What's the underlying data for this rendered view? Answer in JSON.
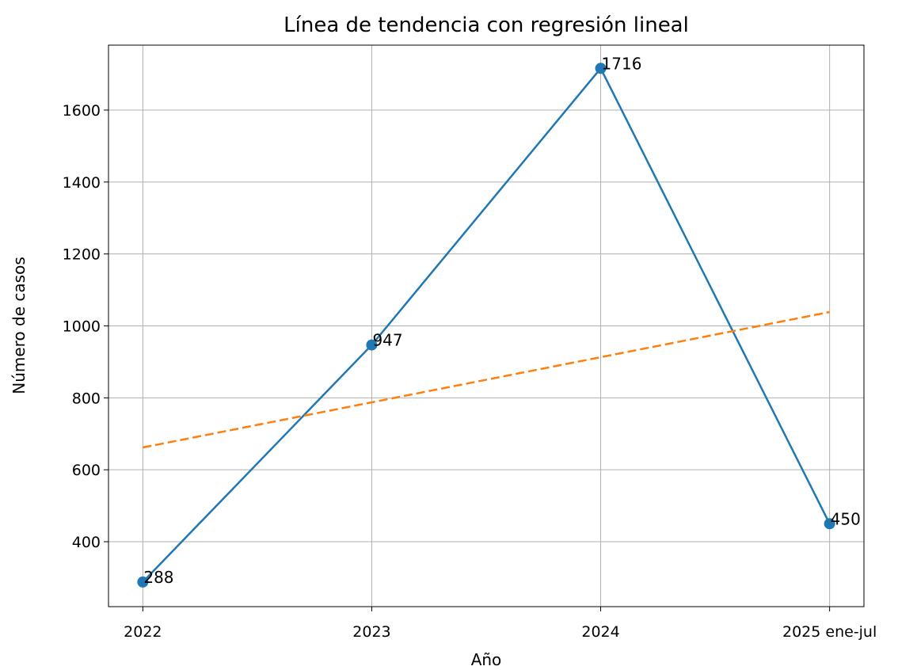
{
  "chart_data": {
    "type": "line",
    "title": "Línea de tendencia con regresión lineal",
    "x_label": "Año",
    "y_label": "Número de casos",
    "categories": [
      "2022",
      "2023",
      "2024",
      "2025 ene-jul"
    ],
    "series": [
      {
        "color": "#1f77b4",
        "values": [
          288,
          947,
          1716,
          450
        ],
        "markers": true,
        "value_labels": [
          "288",
          "947",
          "1716",
          "450"
        ]
      },
      {
        "color": "#ff7f0e",
        "values": [
          662,
          787.5,
          913,
          1038.5
        ],
        "dashed": true
      }
    ],
    "ylim": [
      219.5,
      1780.5
    ],
    "yticks": [
      400,
      600,
      800,
      1000,
      1200,
      1400,
      1600
    ],
    "grid": true
  }
}
